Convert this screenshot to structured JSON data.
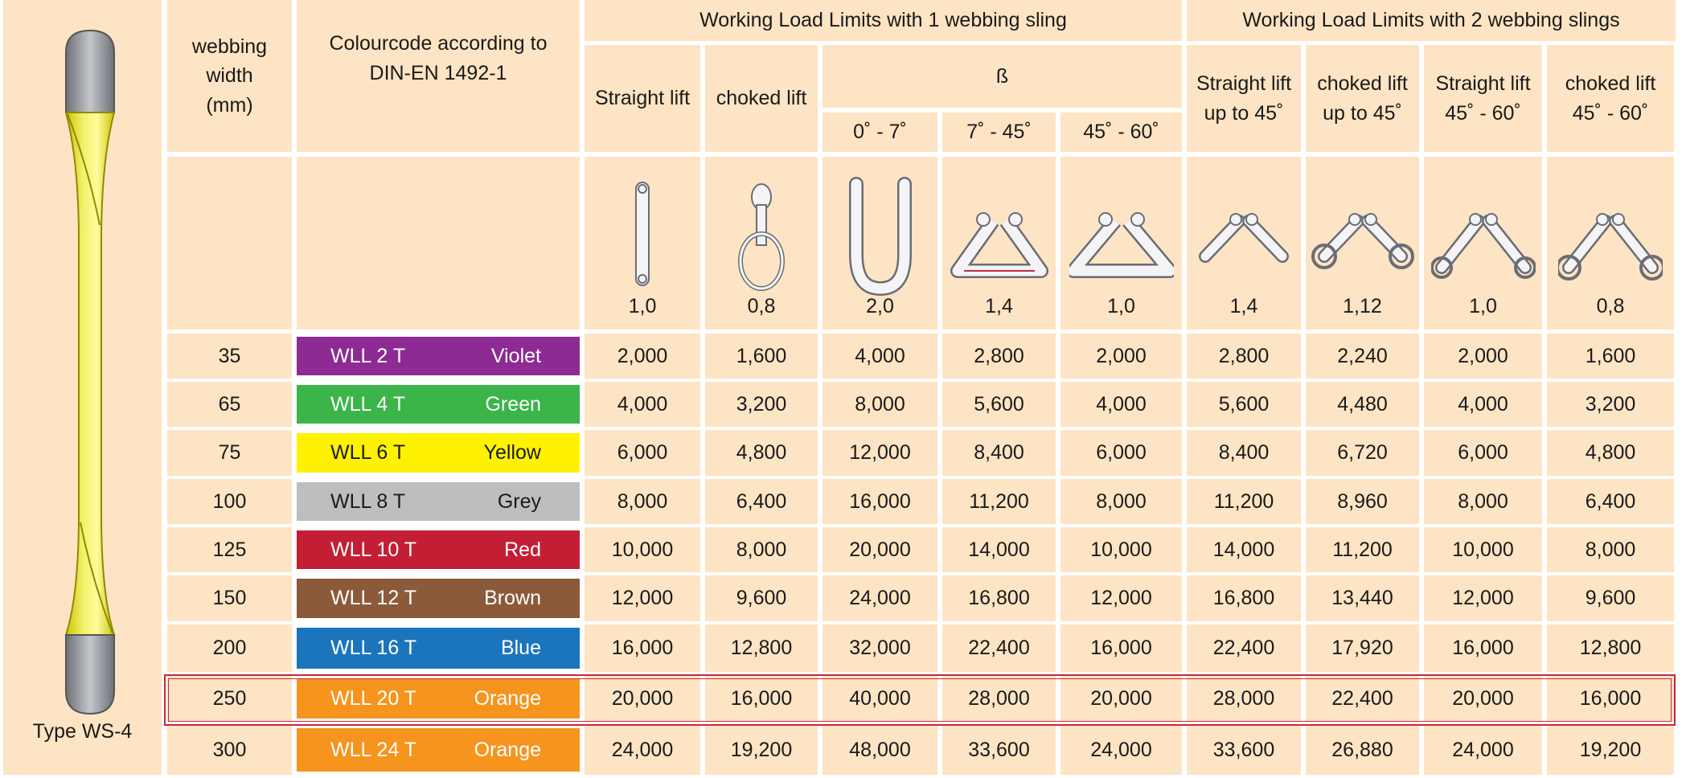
{
  "headers": {
    "webbing_width": "webbing width (mm)",
    "colourcode": "Colourcode according to DIN-EN 1492-1",
    "one_sling": "Working Load Limits with 1 webbing sling",
    "two_slings": "Working Load Limits with 2 webbing slings",
    "straight_lift": "Straight lift",
    "choked_lift": "choked lift",
    "beta": "ß",
    "angle_0_7": "0˚ - 7˚",
    "angle_7_45": "7˚ - 45˚",
    "angle_45_60": "45˚ - 60˚",
    "straight_up_45": "Straight lift up to 45˚",
    "choked_up_45": "choked lift up to 45˚",
    "straight_45_60": "Straight lift 45˚ - 60˚",
    "choked_45_60": "choked lift 45˚ - 60˚"
  },
  "factors": [
    "1,0",
    "0,8",
    "2,0",
    "1,4",
    "1,0",
    "1,4",
    "1,12",
    "1,0",
    "0,8"
  ],
  "image_label": "Type WS-4",
  "rows": [
    {
      "width": "35",
      "wll": "WLL 2 T",
      "colour": "Violet",
      "bg": "#8e2a93",
      "dark": false,
      "values": [
        "2,000",
        "1,600",
        "4,000",
        "2,800",
        "2,000",
        "2,800",
        "2,240",
        "2,000",
        "1,600"
      ]
    },
    {
      "width": "65",
      "wll": "WLL 4 T",
      "colour": "Green",
      "bg": "#3bb54a",
      "dark": false,
      "values": [
        "4,000",
        "3,200",
        "8,000",
        "5,600",
        "4,000",
        "5,600",
        "4,480",
        "4,000",
        "3,200"
      ]
    },
    {
      "width": "75",
      "wll": "WLL 6 T",
      "colour": "Yellow",
      "bg": "#fff200",
      "dark": true,
      "values": [
        "6,000",
        "4,800",
        "12,000",
        "8,400",
        "6,000",
        "8,400",
        "6,720",
        "6,000",
        "4,800"
      ]
    },
    {
      "width": "100",
      "wll": "WLL 8 T",
      "colour": "Grey",
      "bg": "#bcbec0",
      "dark": true,
      "values": [
        "8,000",
        "6,400",
        "16,000",
        "11,200",
        "8,000",
        "11,200",
        "8,960",
        "8,000",
        "6,400"
      ]
    },
    {
      "width": "125",
      "wll": "WLL 10 T",
      "colour": "Red",
      "bg": "#c41e34",
      "dark": false,
      "values": [
        "10,000",
        "8,000",
        "20,000",
        "14,000",
        "10,000",
        "14,000",
        "11,200",
        "10,000",
        "8,000"
      ]
    },
    {
      "width": "150",
      "wll": "WLL 12 T",
      "colour": "Brown",
      "bg": "#8b5a3a",
      "dark": false,
      "values": [
        "12,000",
        "9,600",
        "24,000",
        "16,800",
        "12,000",
        "16,800",
        "13,440",
        "12,000",
        "9,600"
      ]
    },
    {
      "width": "200",
      "wll": "WLL 16 T",
      "colour": "Blue",
      "bg": "#1b75bc",
      "dark": false,
      "values": [
        "16,000",
        "12,800",
        "32,000",
        "22,400",
        "16,000",
        "22,400",
        "17,920",
        "16,000",
        "12,800"
      ]
    },
    {
      "width": "250",
      "wll": "WLL 20 T",
      "colour": "Orange",
      "bg": "#f7941d",
      "dark": false,
      "values": [
        "20,000",
        "16,000",
        "40,000",
        "28,000",
        "20,000",
        "28,000",
        "22,400",
        "20,000",
        "16,000"
      ]
    },
    {
      "width": "300",
      "wll": "WLL 24 T",
      "colour": "Orange",
      "bg": "#f7941d",
      "dark": false,
      "values": [
        "24,000",
        "19,200",
        "48,000",
        "33,600",
        "24,000",
        "33,600",
        "26,880",
        "24,000",
        "19,200"
      ]
    }
  ],
  "highlighted_row": "250"
}
